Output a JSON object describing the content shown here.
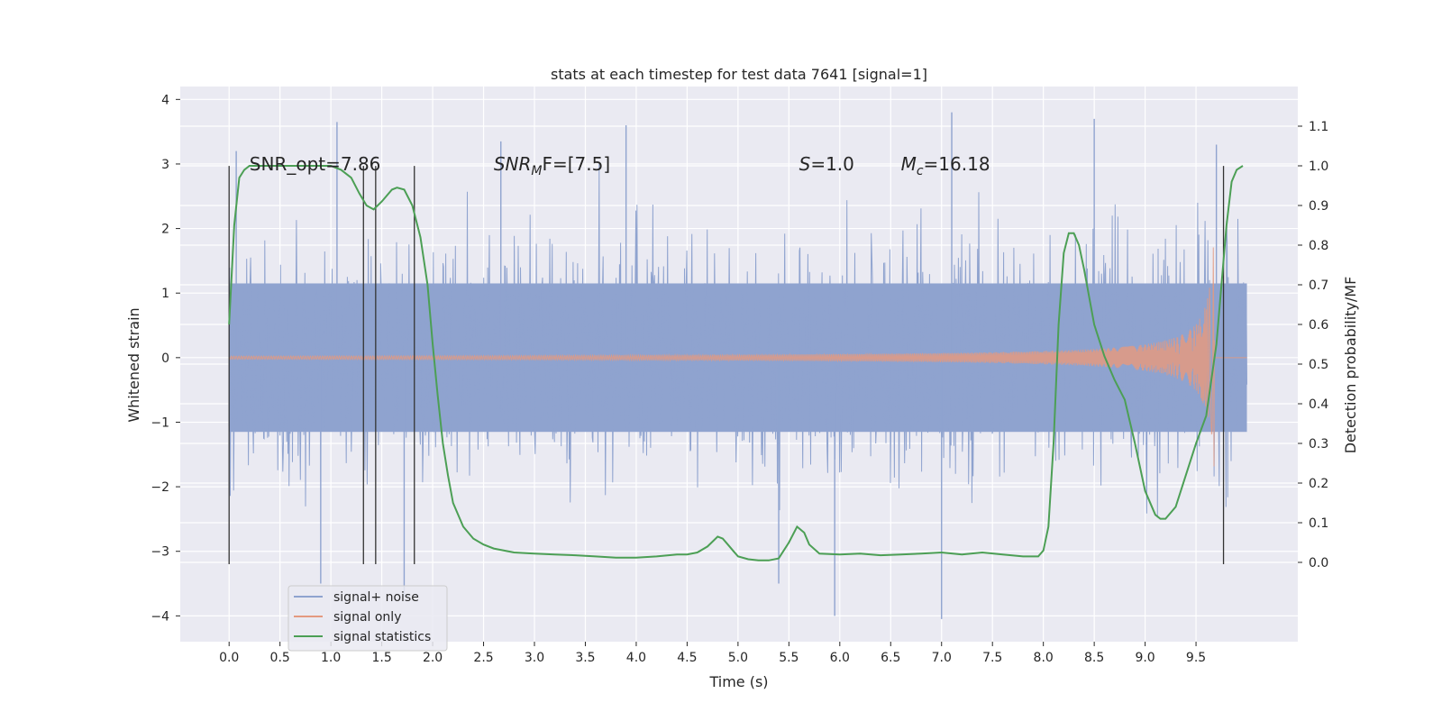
{
  "chart_data": {
    "type": "line",
    "title": "stats at each timestep for test data 7641 [signal=1]",
    "xlabel": "Time (s)",
    "ylabel": "Whitened strain",
    "y2label": "Detection probability/MF",
    "xlim": [
      -0.48,
      10.5
    ],
    "ylim": [
      -4.4,
      4.2
    ],
    "y2lim": [
      -0.2,
      1.2
    ],
    "grid": true,
    "legend_position": "lower-left",
    "x_ticks": [
      "0.0",
      "0.5",
      "1.0",
      "1.5",
      "2.0",
      "2.5",
      "3.0",
      "3.5",
      "4.0",
      "4.5",
      "5.0",
      "5.5",
      "6.0",
      "6.5",
      "7.0",
      "7.5",
      "8.0",
      "8.5",
      "9.0",
      "9.5"
    ],
    "x_tick_values": [
      0,
      0.5,
      1,
      1.5,
      2,
      2.5,
      3,
      3.5,
      4,
      4.5,
      5,
      5.5,
      6,
      6.5,
      7,
      7.5,
      8,
      8.5,
      9,
      9.5
    ],
    "y_ticks": [
      "−4",
      "−3",
      "−2",
      "−1",
      "0",
      "1",
      "2",
      "3",
      "4"
    ],
    "y_tick_values": [
      -4,
      -3,
      -2,
      -1,
      0,
      1,
      2,
      3,
      4
    ],
    "y2_ticks": [
      "0.0",
      "0.1",
      "0.2",
      "0.3",
      "0.4",
      "0.5",
      "0.6",
      "0.7",
      "0.8",
      "0.9",
      "1.0",
      "1.1"
    ],
    "y2_tick_values": [
      0,
      0.1,
      0.2,
      0.3,
      0.4,
      0.5,
      0.6,
      0.7,
      0.8,
      0.9,
      1.0,
      1.1
    ],
    "annotations": [
      {
        "text": "SNR_opt=7.86",
        "x": 0.2,
        "y": 3.0
      },
      {
        "base": "SNR",
        "sub": "M",
        "rest": "F=[7.5]",
        "x": 2.6,
        "y": 3.0
      },
      {
        "base": "S",
        "sub": "",
        "rest": "=1.0",
        "x": 5.6,
        "y": 3.0
      },
      {
        "base": "M",
        "sub": "c",
        "rest": "=16.18",
        "x": 6.6,
        "y": 3.0
      }
    ],
    "vertical_lines_x": [
      0.0,
      1.32,
      1.44,
      1.82,
      9.77
    ],
    "series": [
      {
        "name": "signal+ noise",
        "color": "#8fa3cf",
        "band_x": [
          0,
          10
        ],
        "band_lower": -1.15,
        "band_upper": 1.15,
        "noise_std": 0.85,
        "spikes": [
          {
            "x": 1.06,
            "y": 3.65
          },
          {
            "x": 0.07,
            "y": 3.2
          },
          {
            "x": 2.67,
            "y": 3.35
          },
          {
            "x": 3.9,
            "y": 3.6
          },
          {
            "x": 7.1,
            "y": 3.8
          },
          {
            "x": 8.5,
            "y": 3.7
          },
          {
            "x": 9.7,
            "y": 3.3
          },
          {
            "x": 0.9,
            "y": -3.5
          },
          {
            "x": 5.95,
            "y": -4.0
          },
          {
            "x": 7.0,
            "y": -4.05
          },
          {
            "x": 1.72,
            "y": -3.7
          },
          {
            "x": 5.4,
            "y": -3.5
          }
        ]
      },
      {
        "name": "signal only",
        "color": "#e49a80",
        "type": "chirp",
        "t_merge": 9.68,
        "peak_amplitude": 1.8
      },
      {
        "name": "signal statistics",
        "color": "#4c9f55",
        "axis": "right",
        "x": [
          0.0,
          0.05,
          0.1,
          0.15,
          0.2,
          0.3,
          0.4,
          0.6,
          0.8,
          1.0,
          1.1,
          1.2,
          1.28,
          1.35,
          1.42,
          1.5,
          1.6,
          1.65,
          1.72,
          1.8,
          1.88,
          1.95,
          2.0,
          2.05,
          2.1,
          2.15,
          2.2,
          2.3,
          2.4,
          2.5,
          2.6,
          2.8,
          3.0,
          3.2,
          3.4,
          3.6,
          3.8,
          4.0,
          4.2,
          4.4,
          4.5,
          4.6,
          4.7,
          4.8,
          4.85,
          4.9,
          4.95,
          5.0,
          5.1,
          5.2,
          5.3,
          5.4,
          5.5,
          5.58,
          5.65,
          5.7,
          5.8,
          6.0,
          6.2,
          6.4,
          6.6,
          6.8,
          7.0,
          7.2,
          7.4,
          7.6,
          7.8,
          7.95,
          8.0,
          8.05,
          8.1,
          8.15,
          8.2,
          8.25,
          8.3,
          8.35,
          8.4,
          8.5,
          8.6,
          8.7,
          8.8,
          8.9,
          9.0,
          9.1,
          9.15,
          9.2,
          9.3,
          9.4,
          9.5,
          9.6,
          9.7,
          9.8,
          9.85,
          9.9,
          9.96
        ],
        "y": [
          0.6,
          0.85,
          0.97,
          0.99,
          1.0,
          1.0,
          1.0,
          1.0,
          1.0,
          1.0,
          0.99,
          0.97,
          0.93,
          0.9,
          0.89,
          0.91,
          0.94,
          0.945,
          0.94,
          0.9,
          0.82,
          0.7,
          0.55,
          0.42,
          0.3,
          0.22,
          0.15,
          0.09,
          0.06,
          0.045,
          0.035,
          0.025,
          0.022,
          0.02,
          0.018,
          0.015,
          0.012,
          0.012,
          0.015,
          0.02,
          0.02,
          0.025,
          0.04,
          0.065,
          0.06,
          0.045,
          0.03,
          0.015,
          0.008,
          0.005,
          0.005,
          0.01,
          0.05,
          0.09,
          0.075,
          0.045,
          0.022,
          0.02,
          0.022,
          0.018,
          0.02,
          0.022,
          0.025,
          0.02,
          0.025,
          0.02,
          0.015,
          0.015,
          0.03,
          0.09,
          0.3,
          0.6,
          0.78,
          0.83,
          0.83,
          0.8,
          0.74,
          0.6,
          0.52,
          0.46,
          0.41,
          0.3,
          0.18,
          0.12,
          0.11,
          0.11,
          0.14,
          0.22,
          0.3,
          0.37,
          0.55,
          0.85,
          0.96,
          0.99,
          1.0
        ]
      }
    ]
  }
}
